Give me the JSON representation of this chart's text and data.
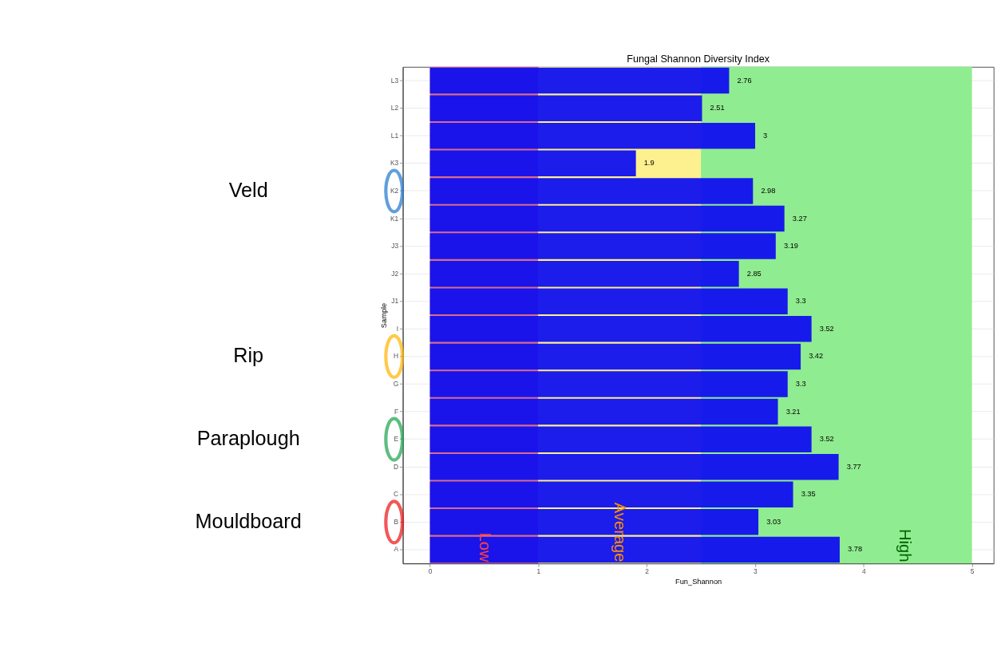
{
  "chart_data": {
    "type": "bar",
    "orientation": "horizontal",
    "title": "Fungal Shannon Diversity Index",
    "xlabel": "Fun_Shannon",
    "ylabel": "Sample",
    "categories": [
      "L3",
      "L2",
      "L1",
      "K3",
      "K2",
      "K1",
      "J3",
      "J2",
      "J1",
      "I",
      "H",
      "G",
      "F",
      "E",
      "D",
      "C",
      "B",
      "A"
    ],
    "values": [
      2.76,
      2.51,
      3,
      1.9,
      2.98,
      3.27,
      3.19,
      2.85,
      3.3,
      3.52,
      3.42,
      3.3,
      3.21,
      3.52,
      3.77,
      3.35,
      3.03,
      3.78
    ],
    "color": "#1010f0",
    "data_labels": true,
    "xlim": [
      -0.25,
      5.2
    ],
    "xticks": [
      0,
      1,
      2,
      3,
      4,
      5
    ],
    "grid": "y",
    "bands": [
      {
        "axis": "x",
        "from": 0,
        "to": 1,
        "label": "Low",
        "color": "#d86c8c"
      },
      {
        "axis": "x",
        "from": 1,
        "to": 2.5,
        "label": "Average",
        "color": "#fdf08f"
      },
      {
        "axis": "x",
        "from": 2.5,
        "to": 5,
        "label": "High",
        "color": "#90ec90"
      }
    ],
    "annotations": [
      "Veld",
      "Rip",
      "Paraplough",
      "Mouldboard"
    ]
  }
}
